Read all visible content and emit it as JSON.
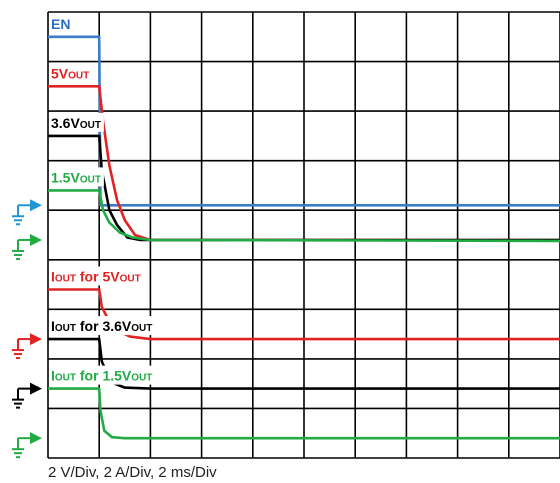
{
  "chart_data": {
    "type": "line",
    "xlim": [
      0,
      20
    ],
    "ylim": [
      0,
      9
    ],
    "x_divisions": 10,
    "y_divisions": 9,
    "grid": true,
    "series": [
      {
        "name": "EN",
        "color": "#3a7dc9",
        "label_color": "#2f6fbf",
        "label": "EN",
        "label_sub": "",
        "points": [
          [
            0,
            8.5
          ],
          [
            2.0,
            8.5
          ],
          [
            2.05,
            5.1
          ],
          [
            20,
            5.1
          ]
        ]
      },
      {
        "name": "5VOUT",
        "color": "#e02424",
        "label_color": "#e02424",
        "label": "5V",
        "label_sub": "OUT",
        "points": [
          [
            0,
            7.5
          ],
          [
            2.0,
            7.5
          ],
          [
            2.15,
            6.8
          ],
          [
            2.4,
            5.9
          ],
          [
            2.7,
            5.2
          ],
          [
            3.0,
            4.8
          ],
          [
            3.4,
            4.5
          ],
          [
            4.0,
            4.4
          ],
          [
            20,
            4.4
          ]
        ]
      },
      {
        "name": "3.6VOUT",
        "color": "#000000",
        "label_color": "#000000",
        "label": "3.6V",
        "label_sub": "OUT",
        "points": [
          [
            0,
            6.5
          ],
          [
            2.0,
            6.5
          ],
          [
            2.1,
            5.8
          ],
          [
            2.4,
            5.0
          ],
          [
            2.7,
            4.7
          ],
          [
            3.1,
            4.45
          ],
          [
            3.6,
            4.4
          ],
          [
            20,
            4.4
          ]
        ]
      },
      {
        "name": "1.5VOUT",
        "color": "#22aa44",
        "label_color": "#22aa44",
        "label": "1.5V",
        "label_sub": "OUT",
        "points": [
          [
            0,
            5.4
          ],
          [
            2.0,
            5.4
          ],
          [
            2.15,
            5.0
          ],
          [
            2.4,
            4.75
          ],
          [
            2.8,
            4.55
          ],
          [
            3.3,
            4.45
          ],
          [
            4.0,
            4.4
          ],
          [
            20,
            4.38
          ]
        ]
      },
      {
        "name": "IOUT for 5VOUT",
        "color": "#e02424",
        "label_color": "#e02424",
        "label": "I",
        "label_sub": "OUT",
        "label_tail": " for 5V",
        "label_sub2": "OUT",
        "points": [
          [
            0,
            3.4
          ],
          [
            2.0,
            3.4
          ],
          [
            2.1,
            3.05
          ],
          [
            2.4,
            2.75
          ],
          [
            2.8,
            2.55
          ],
          [
            3.2,
            2.45
          ],
          [
            4.0,
            2.4
          ],
          [
            20,
            2.4
          ]
        ]
      },
      {
        "name": "IOUT for 3.6VOUT",
        "color": "#000000",
        "label_color": "#000000",
        "label": "I",
        "label_sub": "OUT",
        "label_tail": " for 3.6V",
        "label_sub2": "OUT",
        "points": [
          [
            0,
            2.4
          ],
          [
            2.0,
            2.4
          ],
          [
            2.1,
            1.95
          ],
          [
            2.35,
            1.65
          ],
          [
            2.6,
            1.5
          ],
          [
            3.0,
            1.42
          ],
          [
            4.0,
            1.4
          ],
          [
            20,
            1.4
          ]
        ]
      },
      {
        "name": "IOUT for 1.5VOUT",
        "color": "#22aa44",
        "label_color": "#22aa44",
        "label": "I",
        "label_sub": "OUT",
        "label_tail": " for 1.5V",
        "label_sub2": "OUT",
        "points": [
          [
            0,
            1.4
          ],
          [
            2.0,
            1.4
          ],
          [
            2.05,
            0.95
          ],
          [
            2.2,
            0.55
          ],
          [
            2.5,
            0.42
          ],
          [
            3.0,
            0.4
          ],
          [
            20,
            0.4
          ]
        ]
      }
    ],
    "ground_markers": [
      {
        "color": "#2196d3",
        "y": 5.1
      },
      {
        "color": "#22aa44",
        "y": 4.4
      },
      {
        "color": "#e02424",
        "y": 2.4
      },
      {
        "color": "#000000",
        "y": 1.4
      },
      {
        "color": "#22aa44",
        "y": 0.4
      }
    ],
    "footer": "2 V/Div, 2 A/Div, 2 ms/Div"
  }
}
